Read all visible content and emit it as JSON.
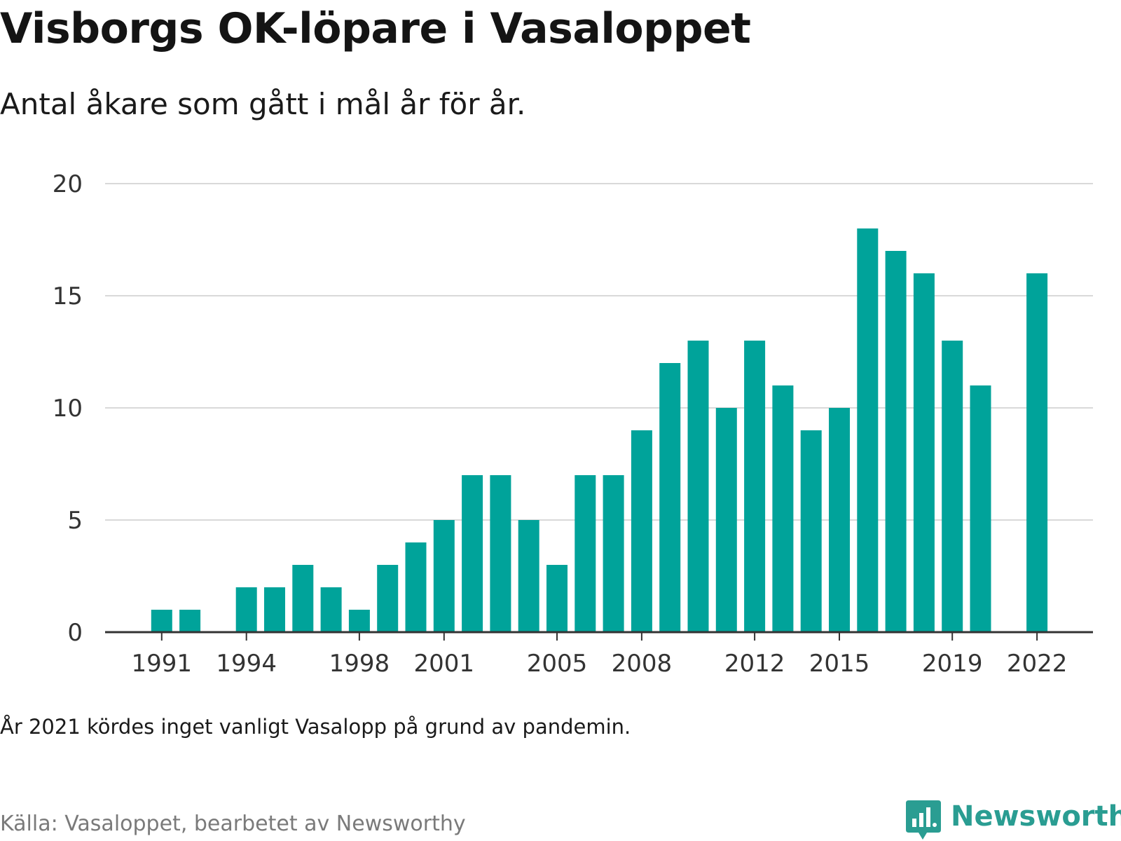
{
  "header": {
    "title": "Visborgs OK-löpare i Vasaloppet",
    "subtitle": "Antal åkare som gått i mål år för år."
  },
  "footer": {
    "note": "År 2021 kördes inget vanligt Vasalopp på grund av pandemin.",
    "source": "Källa: Vasaloppet, bearbetet av Newsworthy",
    "logo_text": "Newsworthy",
    "logo_icon": "bar-chart-speech-bubble-icon"
  },
  "colors": {
    "bar": "#00a39a",
    "grid": "#d9d9d9",
    "axis": "#333333",
    "logo": "#2a9d92"
  },
  "chart_data": {
    "type": "bar",
    "title": "Visborgs OK-löpare i Vasaloppet",
    "subtitle": "Antal åkare som gått i mål år för år.",
    "xlabel": "",
    "ylabel": "",
    "categories": [
      1990,
      1991,
      1992,
      1993,
      1994,
      1995,
      1996,
      1997,
      1998,
      1999,
      2000,
      2001,
      2002,
      2003,
      2004,
      2005,
      2006,
      2007,
      2008,
      2009,
      2010,
      2011,
      2012,
      2013,
      2014,
      2015,
      2016,
      2017,
      2018,
      2019,
      2020,
      2021,
      2022
    ],
    "values": [
      0,
      1,
      1,
      0,
      2,
      2,
      3,
      2,
      1,
      3,
      4,
      5,
      7,
      7,
      5,
      3,
      7,
      7,
      9,
      12,
      13,
      10,
      13,
      11,
      9,
      10,
      18,
      17,
      16,
      13,
      11,
      null,
      16
    ],
    "ylim": [
      0,
      20
    ],
    "yticks": [
      "0",
      "5",
      "10",
      "15",
      "20"
    ],
    "xticks": [
      "1991",
      "1994",
      "1998",
      "2001",
      "2005",
      "2008",
      "2012",
      "2015",
      "2019",
      "2022"
    ],
    "grid": true,
    "legend": "none"
  }
}
